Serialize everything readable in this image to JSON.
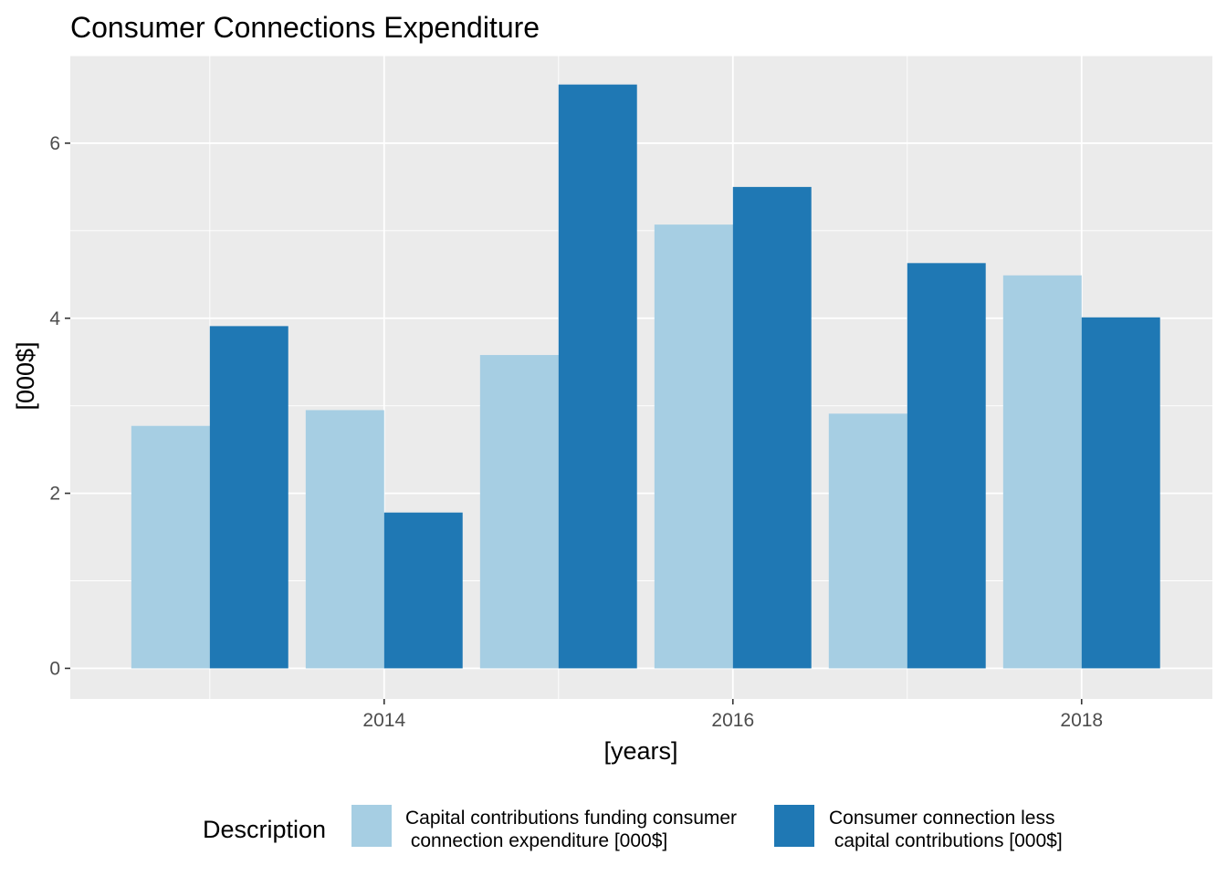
{
  "chart_data": {
    "type": "bar",
    "title": "Consumer Connections Expenditure",
    "xlabel": "[years]",
    "ylabel": "[000$]",
    "categories": [
      2013,
      2014,
      2015,
      2016,
      2017,
      2018
    ],
    "x_ticks": [
      "2014",
      "2016",
      "2018"
    ],
    "x_tick_values": [
      2014,
      2016,
      2018
    ],
    "y_ticks": [
      "0",
      "2",
      "4",
      "6"
    ],
    "y_tick_values": [
      0,
      2,
      4,
      6
    ],
    "xlim": [
      2012.2,
      2018.75
    ],
    "ylim": [
      -0.35,
      7.0
    ],
    "grid": true,
    "legend_position": "bottom",
    "legend_title": "Description",
    "series": [
      {
        "name_lines": [
          "Capital contributions funding consumer",
          " connection expenditure [000$]"
        ],
        "color": "#a6cee3",
        "values": [
          2.77,
          2.95,
          3.58,
          5.07,
          2.91,
          4.49
        ]
      },
      {
        "name_lines": [
          "Consumer connection less",
          " capital contributions [000$]"
        ],
        "color": "#1f78b4",
        "values": [
          3.91,
          1.78,
          6.67,
          5.5,
          4.63,
          4.01
        ]
      }
    ]
  }
}
